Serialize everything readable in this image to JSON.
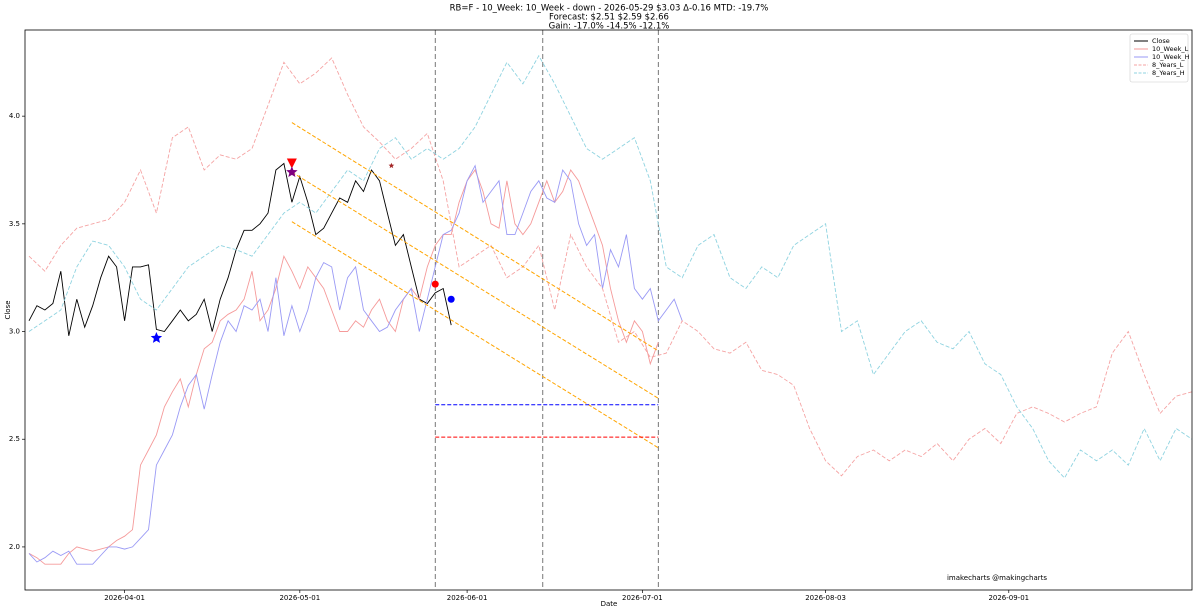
{
  "chart_data": {
    "type": "line",
    "title": [
      "RB=F - 10_Week: 10_Week - down - 2026-05-29 $3.03 Δ-0.16 MTD: -19.7%",
      "Forecast:  $2.51   $2.59   $2.66",
      "Gain: -17.0%  -14.5%  -12.1%"
    ],
    "xlabel": "Date",
    "ylabel": "Close",
    "annotation": "imakecharts @makingcharts",
    "xlim": [
      -12.5,
      134
    ],
    "xticks": [
      {
        "value": 0,
        "label": "2026-04-01"
      },
      {
        "value": 22,
        "label": "2026-05-01"
      },
      {
        "value": 43,
        "label": "2026-06-01"
      },
      {
        "value": 65,
        "label": "2026-07-01"
      },
      {
        "value": 88,
        "label": "2026-08-03"
      },
      {
        "value": 111,
        "label": "2026-09-01"
      }
    ],
    "ylim": [
      1.8,
      4.4
    ],
    "yticks": [
      {
        "value": 2,
        "label": "2.0"
      },
      2.5,
      {
        "value": 3,
        "label": "3.0"
      },
      3.5,
      {
        "value": 4,
        "label": "4.0"
      }
    ],
    "legend": "upper right",
    "series": [
      {
        "name": "Close",
        "color": "#000000",
        "dash": false,
        "x": [
          -12,
          -11,
          -10,
          -9,
          -8,
          -7,
          -6,
          -5,
          -4,
          -3,
          -2,
          -1,
          0,
          1,
          2,
          3,
          4,
          5,
          6,
          7,
          8,
          9,
          10,
          11,
          12,
          13,
          14,
          15,
          16,
          17,
          18,
          19,
          20,
          21,
          22,
          23,
          24,
          25,
          26,
          27,
          28,
          29,
          30,
          31,
          32,
          33,
          34,
          35,
          36,
          37,
          38,
          39,
          40,
          41
        ],
        "values": [
          3.05,
          3.12,
          3.1,
          3.13,
          3.28,
          2.98,
          3.15,
          3.02,
          3.12,
          3.25,
          3.35,
          3.3,
          3.05,
          3.3,
          3.3,
          3.31,
          3.01,
          3.0,
          3.05,
          3.1,
          3.05,
          3.08,
          3.15,
          3.0,
          3.15,
          3.25,
          3.38,
          3.47,
          3.47,
          3.5,
          3.55,
          3.75,
          3.78,
          3.6,
          3.72,
          3.6,
          3.45,
          3.48,
          3.55,
          3.62,
          3.6,
          3.7,
          3.65,
          3.75,
          3.7,
          3.55,
          3.4,
          3.45,
          3.3,
          3.15,
          3.13,
          3.18,
          3.2,
          3.03
        ]
      },
      {
        "name": "10_Week_L",
        "color": "#f59a9a",
        "dash": false,
        "x": [
          -12,
          -11,
          -10,
          -9,
          -8,
          -7,
          -6,
          -5,
          -4,
          -3,
          -2,
          -1,
          0,
          1,
          2,
          3,
          4,
          5,
          6,
          7,
          8,
          9,
          10,
          11,
          12,
          13,
          14,
          15,
          16,
          17,
          18,
          19,
          20,
          21,
          22,
          23,
          24,
          25,
          26,
          27,
          28,
          29,
          30,
          31,
          32,
          33,
          34,
          35,
          36,
          37,
          38,
          39,
          40,
          41,
          42,
          43,
          44,
          45,
          46,
          47,
          48,
          49,
          50,
          51,
          52,
          53,
          54,
          55,
          56,
          57,
          58,
          59,
          60,
          61,
          62,
          63,
          64,
          65,
          66,
          67
        ],
        "values": [
          1.97,
          1.95,
          1.92,
          1.92,
          1.92,
          1.97,
          2.0,
          1.99,
          1.98,
          1.99,
          2.0,
          2.03,
          2.05,
          2.08,
          2.38,
          2.45,
          2.52,
          2.65,
          2.72,
          2.78,
          2.65,
          2.8,
          2.92,
          2.95,
          3.05,
          3.08,
          3.1,
          3.15,
          3.28,
          3.05,
          3.1,
          3.2,
          3.35,
          3.28,
          3.2,
          3.3,
          3.25,
          3.2,
          3.1,
          3.0,
          3.0,
          3.05,
          3.02,
          3.1,
          3.15,
          3.05,
          3.0,
          3.15,
          3.2,
          3.15,
          3.3,
          3.4,
          3.45,
          3.45,
          3.6,
          3.7,
          3.75,
          3.65,
          3.5,
          3.48,
          3.7,
          3.5,
          3.45,
          3.5,
          3.6,
          3.7,
          3.6,
          3.65,
          3.75,
          3.7,
          3.6,
          3.5,
          3.4,
          3.2,
          3.05,
          2.95,
          3.05,
          3.0,
          2.85,
          2.95
        ]
      },
      {
        "name": "10_Week_H",
        "color": "#9a9af5",
        "dash": false,
        "x": [
          -12,
          -11,
          -10,
          -9,
          -8,
          -7,
          -6,
          -5,
          -4,
          -3,
          -2,
          -1,
          0,
          1,
          2,
          3,
          4,
          5,
          6,
          7,
          8,
          9,
          10,
          11,
          12,
          13,
          14,
          15,
          16,
          17,
          18,
          19,
          20,
          21,
          22,
          23,
          24,
          25,
          26,
          27,
          28,
          29,
          30,
          31,
          32,
          33,
          34,
          35,
          36,
          37,
          38,
          39,
          40,
          41,
          42,
          43,
          44,
          45,
          46,
          47,
          48,
          49,
          50,
          51,
          52,
          53,
          54,
          55,
          56,
          57,
          58,
          59,
          60,
          61,
          62,
          63,
          64,
          65,
          66,
          67,
          68,
          69,
          70
        ],
        "values": [
          1.97,
          1.93,
          1.95,
          1.98,
          1.96,
          1.98,
          1.92,
          1.92,
          1.92,
          1.96,
          2.0,
          2.0,
          1.99,
          2.0,
          2.04,
          2.08,
          2.38,
          2.45,
          2.52,
          2.65,
          2.75,
          2.8,
          2.64,
          2.8,
          2.95,
          3.05,
          3.0,
          3.12,
          3.1,
          3.15,
          3.0,
          3.25,
          2.98,
          3.12,
          3.0,
          3.1,
          3.25,
          3.32,
          3.3,
          3.1,
          3.25,
          3.3,
          3.1,
          3.05,
          3.0,
          3.02,
          3.1,
          3.15,
          3.2,
          3.0,
          3.15,
          3.3,
          3.45,
          3.47,
          3.55,
          3.7,
          3.77,
          3.6,
          3.65,
          3.7,
          3.45,
          3.45,
          3.55,
          3.65,
          3.7,
          3.62,
          3.6,
          3.75,
          3.7,
          3.5,
          3.4,
          3.45,
          3.2,
          3.38,
          3.3,
          3.45,
          3.2,
          3.15,
          3.2,
          3.05,
          3.1,
          3.15,
          3.05
        ]
      },
      {
        "name": "8_Years_L",
        "color": "#f5a3a3",
        "dash": true,
        "x": [
          -12,
          -10,
          -8,
          -6,
          -4,
          -2,
          0,
          2,
          4,
          6,
          8,
          10,
          12,
          14,
          16,
          18,
          20,
          22,
          24,
          26,
          28,
          30,
          32,
          34,
          36,
          38,
          40,
          42,
          44,
          46,
          48,
          50,
          52,
          54,
          56,
          58,
          60,
          62,
          64,
          66,
          68,
          70,
          72,
          74,
          76,
          78,
          80,
          82,
          84,
          86,
          88,
          90,
          92,
          94,
          96,
          98,
          100,
          102,
          104,
          106,
          108,
          110,
          112,
          114,
          116,
          118,
          120,
          122,
          124,
          126,
          128,
          130,
          132,
          134
        ],
        "values": [
          3.35,
          3.28,
          3.4,
          3.48,
          3.5,
          3.52,
          3.6,
          3.75,
          3.55,
          3.9,
          3.95,
          3.75,
          3.82,
          3.8,
          3.85,
          4.05,
          4.25,
          4.15,
          4.2,
          4.27,
          4.1,
          3.95,
          3.88,
          3.8,
          3.85,
          3.92,
          3.7,
          3.3,
          3.35,
          3.4,
          3.25,
          3.3,
          3.4,
          3.1,
          3.45,
          3.3,
          3.2,
          2.95,
          3.0,
          2.88,
          2.9,
          3.05,
          3.0,
          2.92,
          2.9,
          2.95,
          2.82,
          2.8,
          2.75,
          2.55,
          2.4,
          2.33,
          2.42,
          2.45,
          2.4,
          2.45,
          2.42,
          2.48,
          2.4,
          2.5,
          2.55,
          2.48,
          2.62,
          2.65,
          2.62,
          2.58,
          2.62,
          2.65,
          2.9,
          3.0,
          2.8,
          2.62,
          2.7,
          2.72
        ]
      },
      {
        "name": "8_Years_H",
        "color": "#8fd3e0",
        "dash": true,
        "x": [
          -12,
          -10,
          -8,
          -6,
          -4,
          -2,
          0,
          2,
          4,
          6,
          8,
          10,
          12,
          14,
          16,
          18,
          20,
          22,
          24,
          26,
          28,
          30,
          32,
          34,
          36,
          38,
          40,
          42,
          44,
          46,
          48,
          50,
          52,
          54,
          56,
          58,
          60,
          62,
          64,
          66,
          68,
          70,
          72,
          74,
          76,
          78,
          80,
          82,
          84,
          86,
          88,
          90,
          92,
          94,
          96,
          98,
          100,
          102,
          104,
          106,
          108,
          110,
          112,
          114,
          116,
          118,
          120,
          122,
          124,
          126,
          128,
          130,
          132,
          134
        ],
        "values": [
          3.0,
          3.05,
          3.1,
          3.3,
          3.42,
          3.4,
          3.3,
          3.15,
          3.1,
          3.2,
          3.3,
          3.35,
          3.4,
          3.38,
          3.35,
          3.45,
          3.55,
          3.6,
          3.55,
          3.65,
          3.75,
          3.7,
          3.85,
          3.9,
          3.8,
          3.85,
          3.8,
          3.85,
          3.95,
          4.1,
          4.25,
          4.15,
          4.28,
          4.15,
          4.0,
          3.85,
          3.8,
          3.85,
          3.9,
          3.7,
          3.3,
          3.25,
          3.4,
          3.45,
          3.25,
          3.2,
          3.3,
          3.25,
          3.4,
          3.45,
          3.5,
          3.0,
          3.05,
          2.8,
          2.9,
          3.0,
          3.05,
          2.95,
          2.92,
          3.0,
          2.85,
          2.8,
          2.65,
          2.55,
          2.4,
          2.32,
          2.45,
          2.4,
          2.45,
          2.38,
          2.55,
          2.4,
          2.55,
          2.5
        ]
      }
    ],
    "trend_lines": {
      "color": "#ffa500",
      "lines": [
        {
          "x": [
            21,
            67
          ],
          "values": [
            3.97,
            2.91
          ]
        },
        {
          "x": [
            21,
            67
          ],
          "values": [
            3.74,
            2.69
          ]
        },
        {
          "x": [
            21,
            67
          ],
          "values": [
            3.51,
            2.46
          ]
        }
      ]
    },
    "hlines": [
      {
        "value": 2.66,
        "x": [
          39,
          67
        ],
        "color": "#0000ff"
      },
      {
        "value": 2.51,
        "x": [
          39,
          67
        ],
        "color": "#ff0000"
      }
    ],
    "vlines": {
      "color": "#555555",
      "x": [
        39,
        52.5,
        67
      ]
    },
    "markers": [
      {
        "x": 21,
        "value": 3.78,
        "shape": "triangle",
        "color": "#ff0000",
        "size": 5
      },
      {
        "x": 21,
        "value": 3.74,
        "shape": "star",
        "color": "#800080",
        "size": 6
      },
      {
        "x": 33.5,
        "value": 3.77,
        "shape": "star",
        "color": "#a52a2a",
        "size": 3
      },
      {
        "x": 4,
        "value": 2.97,
        "shape": "star",
        "color": "#0000ff",
        "size": 6
      },
      {
        "x": 39,
        "value": 3.22,
        "shape": "circle",
        "color": "#ff0000",
        "size": 3.5
      },
      {
        "x": 41,
        "value": 3.15,
        "shape": "circle",
        "color": "#0000ff",
        "size": 3.5
      }
    ]
  }
}
